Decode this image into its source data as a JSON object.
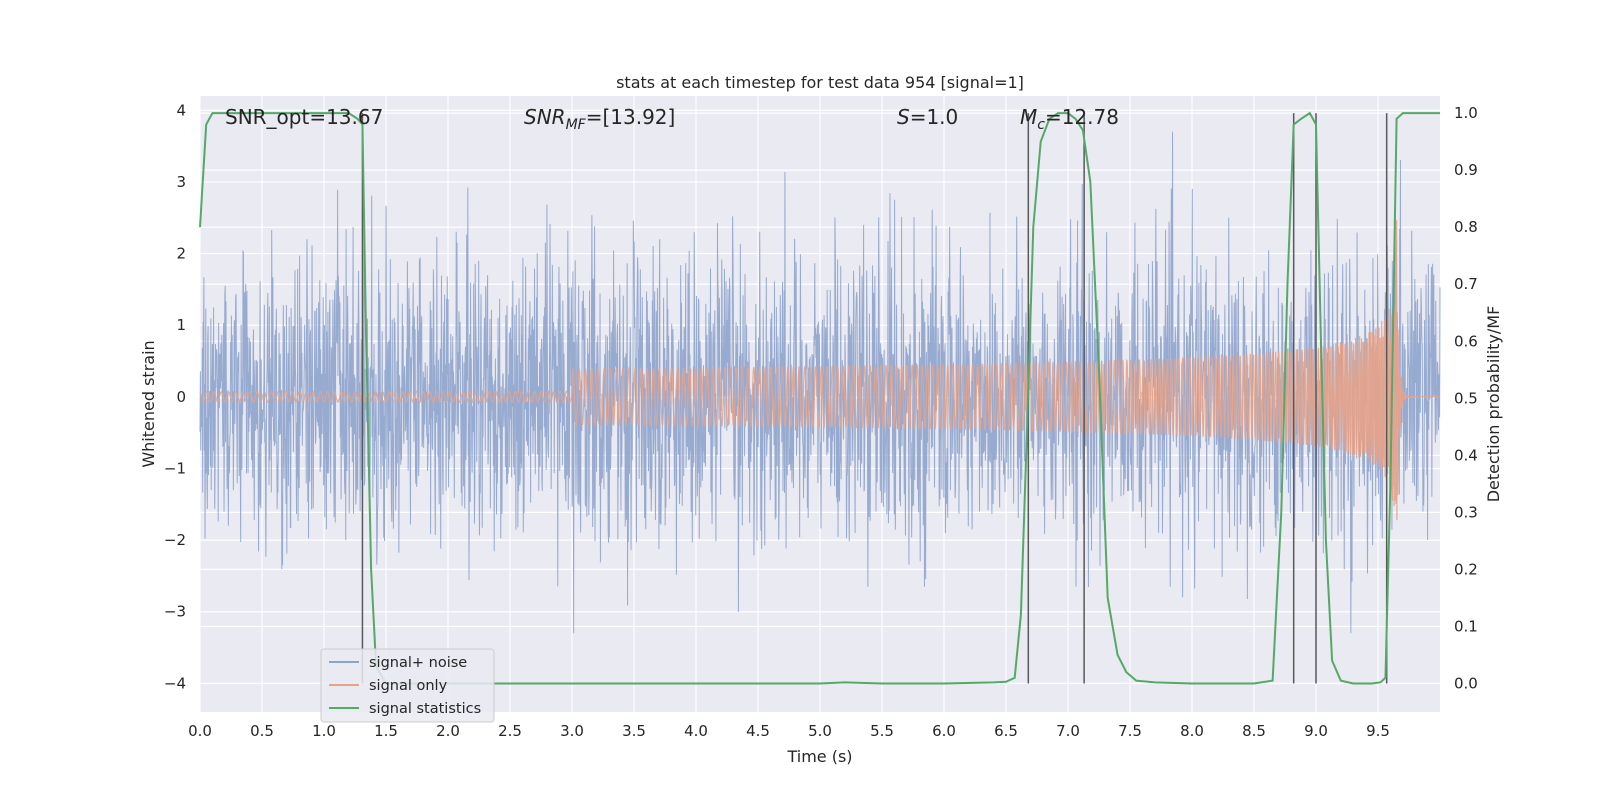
{
  "chart_data": {
    "type": "line",
    "title": "stats at each timestep for test data 954 [signal=1]",
    "xlabel": "Time (s)",
    "ylabel_left": "Whitened strain",
    "ylabel_right": "Detection probability/MF",
    "xlim": [
      0.0,
      10.0
    ],
    "ylim_left": [
      -4.4,
      4.2
    ],
    "ylim_right": [
      -0.05,
      1.03
    ],
    "x_ticks": [
      "0.0",
      "0.5",
      "1.0",
      "1.5",
      "2.0",
      "2.5",
      "3.0",
      "3.5",
      "4.0",
      "4.5",
      "5.0",
      "5.5",
      "6.0",
      "6.5",
      "7.0",
      "7.5",
      "8.0",
      "8.5",
      "9.0",
      "9.5"
    ],
    "y_ticks_left": [
      "−4",
      "−3",
      "−2",
      "−1",
      "0",
      "1",
      "2",
      "3",
      "4"
    ],
    "y_ticks_right": [
      "0.0",
      "0.1",
      "0.2",
      "0.3",
      "0.4",
      "0.5",
      "0.6",
      "0.7",
      "0.8",
      "0.9",
      "1.0"
    ],
    "grid": true,
    "legend_position": "lower-left",
    "annotations": {
      "snr_opt": "SNR_opt=13.67",
      "snr_mf_italic": "SNR",
      "snr_mf_sub": "MF",
      "snr_mf_rest": "=[13.92]",
      "s_italic": "S",
      "s_rest": "=1.0",
      "mc_italic": "M",
      "mc_sub": "c",
      "mc_rest": "=12.78"
    },
    "series": [
      {
        "name": "signal+ noise",
        "color": "#8ea3cc",
        "axis": "left",
        "noise_sd": 1.0,
        "noise_abs_range": [
          -3.3,
          3.7
        ]
      },
      {
        "name": "signal only",
        "color": "#e6a38a",
        "axis": "left",
        "chirp_start": 5.0,
        "chirp_merger": 9.65,
        "peak_amplitude": 2.5
      },
      {
        "name": "signal statistics",
        "color": "#55a868",
        "axis": "right",
        "x": [
          0.0,
          0.05,
          0.1,
          0.3,
          0.6,
          0.9,
          1.1,
          1.2,
          1.27,
          1.31,
          1.34,
          1.38,
          1.42,
          1.5,
          2.0,
          3.0,
          4.0,
          4.5,
          5.0,
          5.2,
          5.5,
          6.0,
          6.4,
          6.5,
          6.57,
          6.62,
          6.67,
          6.72,
          6.78,
          6.85,
          6.92,
          7.0,
          7.06,
          7.12,
          7.18,
          7.25,
          7.32,
          7.4,
          7.47,
          7.55,
          7.7,
          8.0,
          8.5,
          8.65,
          8.72,
          8.77,
          8.82,
          8.88,
          8.95,
          9.0,
          9.04,
          9.08,
          9.13,
          9.2,
          9.3,
          9.45,
          9.52,
          9.56,
          9.6,
          9.65,
          9.7,
          9.8,
          10.0
        ],
        "values": [
          0.8,
          0.98,
          1.0,
          1.0,
          1.0,
          1.0,
          1.0,
          1.0,
          0.99,
          0.98,
          0.6,
          0.2,
          0.03,
          0.0,
          0.0,
          0.0,
          0.0,
          0.0,
          0.0,
          0.002,
          0.0,
          0.0,
          0.002,
          0.003,
          0.01,
          0.12,
          0.45,
          0.8,
          0.95,
          0.99,
          1.0,
          1.0,
          0.99,
          0.97,
          0.88,
          0.55,
          0.15,
          0.05,
          0.02,
          0.005,
          0.002,
          0.0,
          0.0,
          0.005,
          0.3,
          0.7,
          0.98,
          0.99,
          1.0,
          0.98,
          0.6,
          0.25,
          0.04,
          0.005,
          0.0,
          0.0,
          0.002,
          0.01,
          0.35,
          0.99,
          1.0,
          1.0,
          1.0
        ]
      }
    ],
    "vertical_lines": [
      1.31,
      6.68,
      7.13,
      8.82,
      9.0,
      9.57
    ],
    "vertical_line_color": "#595959"
  },
  "legend": {
    "items": [
      {
        "label": "signal+ noise",
        "color": "#8ea3cc"
      },
      {
        "label": "signal only",
        "color": "#e6a38a"
      },
      {
        "label": "signal statistics",
        "color": "#55a868"
      }
    ]
  },
  "colors": {
    "plot_background": "#eaeaf2",
    "grid": "#ffffff",
    "text": "#262626"
  }
}
